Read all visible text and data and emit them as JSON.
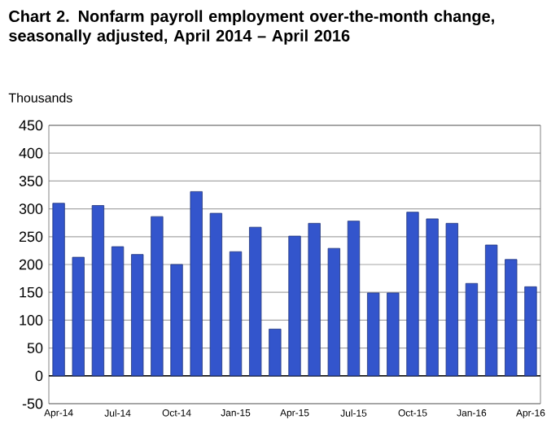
{
  "chart_data": {
    "type": "bar",
    "title": "Chart 2. Nonfarm payroll employment over-the-month change, seasonally adjusted, April 2014 – April 2016",
    "ylabel": "Thousands",
    "categories": [
      "Apr-14",
      null,
      null,
      "Jul-14",
      null,
      null,
      "Oct-14",
      null,
      null,
      "Jan-15",
      null,
      null,
      "Apr-15",
      null,
      null,
      "Jul-15",
      null,
      null,
      "Oct-15",
      null,
      null,
      "Jan-16",
      null,
      null,
      "Apr-16"
    ],
    "values": [
      310,
      213,
      306,
      232,
      218,
      286,
      200,
      331,
      292,
      223,
      267,
      84,
      251,
      274,
      229,
      278,
      149,
      149,
      294,
      282,
      274,
      166,
      235,
      209,
      160
    ],
    "color": "#3355cc",
    "ylim": [
      -50,
      450
    ],
    "yticks": [
      -50,
      0,
      50,
      100,
      150,
      200,
      250,
      300,
      350,
      400,
      450
    ],
    "grid": "y"
  }
}
